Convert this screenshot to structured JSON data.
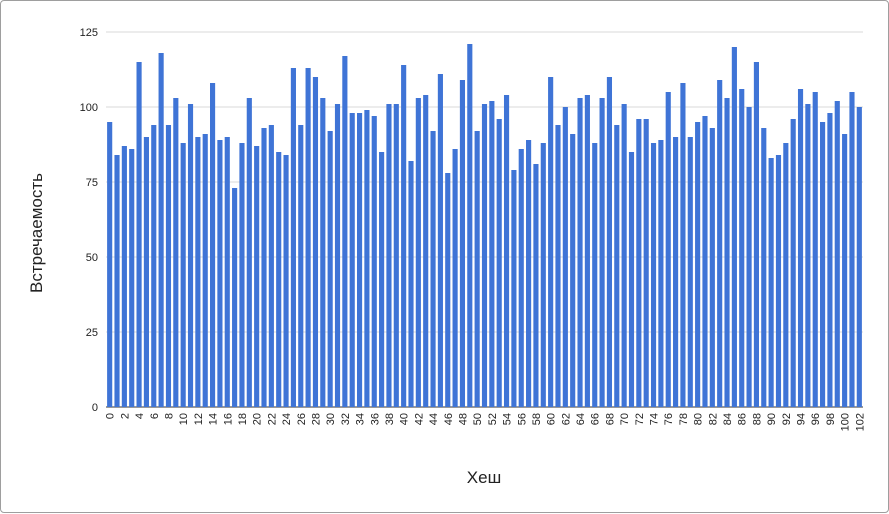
{
  "chart_data": {
    "type": "bar",
    "xlabel": "Хеш",
    "ylabel": "Встречаемость",
    "ylim": [
      0,
      125
    ],
    "yticks": [
      0,
      25,
      50,
      75,
      100,
      125
    ],
    "grid": true,
    "legend": "none",
    "bar_color": "#3f74d6",
    "grid_color": "#d9d9d9",
    "categories": [
      0,
      1,
      2,
      3,
      4,
      5,
      6,
      7,
      8,
      9,
      10,
      11,
      12,
      13,
      14,
      15,
      16,
      17,
      18,
      19,
      20,
      21,
      22,
      23,
      24,
      25,
      26,
      27,
      28,
      29,
      30,
      31,
      32,
      33,
      34,
      35,
      36,
      37,
      38,
      39,
      40,
      41,
      42,
      43,
      44,
      45,
      46,
      47,
      48,
      49,
      50,
      51,
      52,
      53,
      54,
      55,
      56,
      57,
      58,
      59,
      60,
      61,
      62,
      63,
      64,
      65,
      66,
      67,
      68,
      69,
      70,
      71,
      72,
      73,
      74,
      75,
      76,
      77,
      78,
      79,
      80,
      81,
      82,
      83,
      84,
      85,
      86,
      87,
      88,
      89,
      90,
      91,
      92,
      93,
      94,
      95,
      96,
      97,
      98,
      99,
      100,
      101,
      102
    ],
    "x_tick_labels": [
      "0",
      "2",
      "4",
      "6",
      "8",
      "10",
      "12",
      "14",
      "16",
      "18",
      "20",
      "22",
      "24",
      "26",
      "28",
      "30",
      "32",
      "34",
      "36",
      "38",
      "40",
      "42",
      "44",
      "46",
      "48",
      "50",
      "52",
      "54",
      "56",
      "58",
      "60",
      "62",
      "64",
      "66",
      "68",
      "70",
      "72",
      "74",
      "76",
      "78",
      "80",
      "82",
      "84",
      "86",
      "88",
      "90",
      "92",
      "94",
      "96",
      "98",
      "100",
      "102"
    ],
    "values": [
      95,
      84,
      87,
      86,
      115,
      90,
      94,
      118,
      94,
      103,
      88,
      101,
      90,
      91,
      108,
      89,
      90,
      73,
      88,
      103,
      87,
      93,
      94,
      85,
      84,
      113,
      94,
      113,
      110,
      103,
      92,
      101,
      117,
      98,
      98,
      99,
      97,
      85,
      101,
      101,
      114,
      82,
      103,
      104,
      92,
      111,
      78,
      86,
      109,
      121,
      92,
      101,
      102,
      96,
      104,
      79,
      86,
      89,
      81,
      88,
      110,
      94,
      100,
      91,
      103,
      104,
      88,
      103,
      110,
      94,
      101,
      85,
      96,
      96,
      88,
      89,
      105,
      90,
      108,
      90,
      95,
      97,
      93,
      109,
      103,
      120,
      106,
      100,
      115,
      93,
      83,
      84,
      88,
      96,
      106,
      101,
      105,
      95,
      98,
      102,
      91,
      105,
      100
    ]
  }
}
